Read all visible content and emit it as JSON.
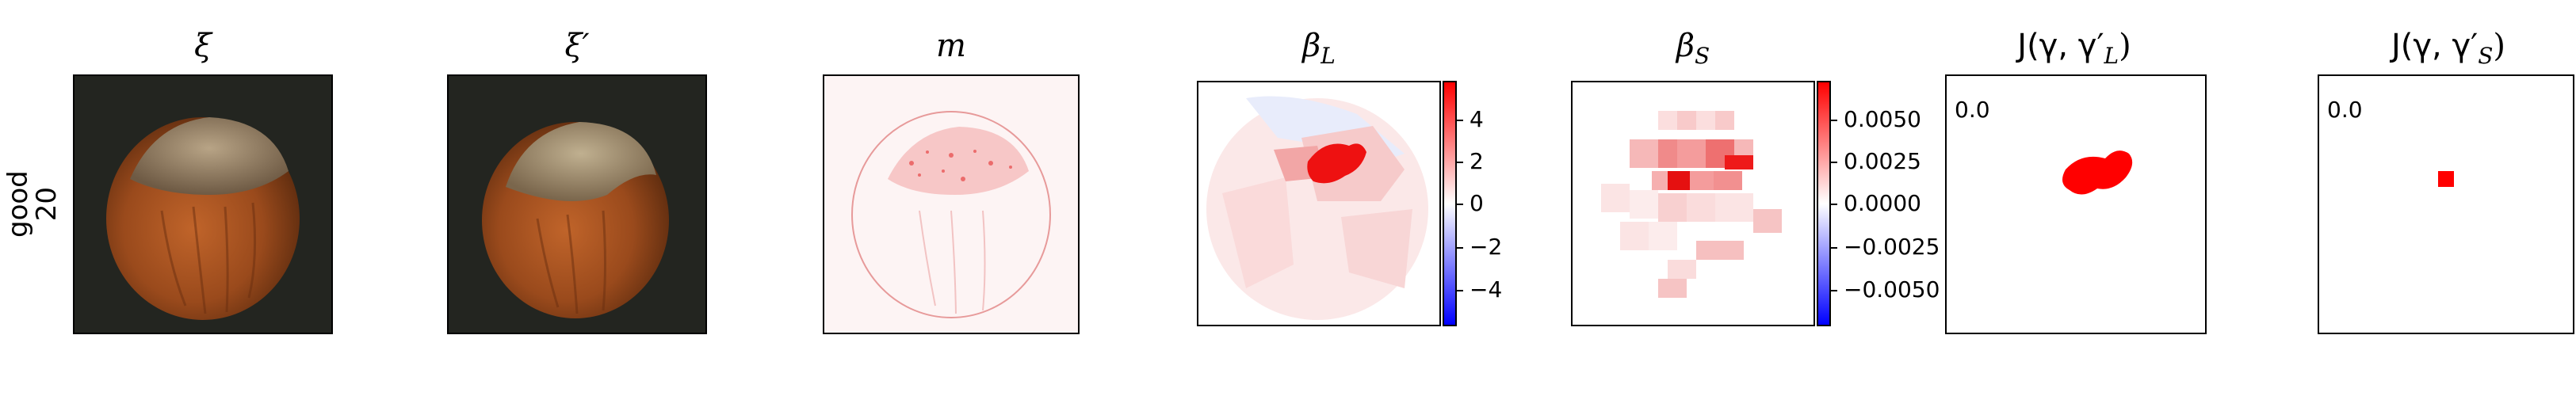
{
  "row_label": {
    "line1": "good",
    "line2": "20"
  },
  "panels": [
    {
      "title": "ξ"
    },
    {
      "title": "ξ′"
    },
    {
      "title": "m"
    },
    {
      "title": "β",
      "sub": "L"
    },
    {
      "title": "β",
      "sub": "S"
    },
    {
      "title_prefix": "J(γ, γ′",
      "sub": "L",
      "title_suffix": ")",
      "corner": "0.0"
    },
    {
      "title_prefix": "J(γ, γ′",
      "sub": "S",
      "title_suffix": ")",
      "corner": "0.0"
    }
  ],
  "colorbar_L": {
    "ticks": [
      "4",
      "2",
      "0",
      "−2",
      "−4"
    ],
    "colors": [
      "#0000ff",
      "#ffffff",
      "#ff0000"
    ]
  },
  "colorbar_S": {
    "ticks": [
      "0.0050",
      "0.0025",
      "0.0000",
      "−0.0025",
      "−0.0050"
    ],
    "colors": [
      "#0000ff",
      "#ffffff",
      "#ff0000"
    ]
  }
}
